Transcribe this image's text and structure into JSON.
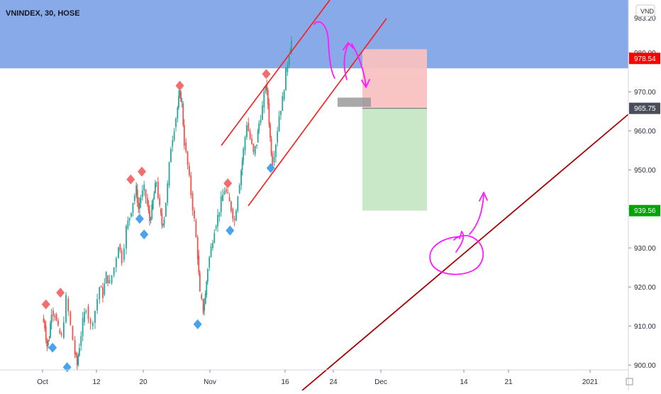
{
  "chart_data": {
    "type": "candlestick",
    "symbol_title": "VNINDEX, 30, HOSE",
    "currency_badge": "VND",
    "x_tick_labels": [
      "Oct",
      "12",
      "20",
      "Nov",
      "16",
      "24",
      "Dec",
      "14",
      "21",
      "2021"
    ],
    "y_tick_labels": [
      "900.00",
      "910.00",
      "920.00",
      "930.00",
      "940.00",
      "950.00",
      "960.00",
      "970.00",
      "980.00"
    ],
    "y_ticks": [
      900,
      910,
      920,
      930,
      940,
      950,
      960,
      970,
      980
    ],
    "ylim": [
      893.5,
      993.5
    ],
    "top_cut_label": "983.20",
    "price_badges": [
      {
        "label": "978.54",
        "value": 978.54,
        "color": "#ff0000",
        "text_color": "#ffffff"
      },
      {
        "label": "965.75",
        "value": 965.75,
        "color": "#4a4e5a",
        "text_color": "#ffffff"
      },
      {
        "label": "939.56",
        "value": 939.56,
        "color": "#00a400",
        "text_color": "#ffffff"
      }
    ],
    "resistance_zone": {
      "from": 976,
      "to": 993.5,
      "color": "#7fa3e6"
    },
    "position_tool": {
      "entry": 965.75,
      "stop": 978.54,
      "target": 939.56,
      "stop_color": "#f8c1c1",
      "target_color": "#c8e8c8"
    },
    "trend_channel_color": "#ff1a1a",
    "long_trendline_color": "#a80000",
    "annotation_color": "#ff19ff",
    "candle_up_color": "#26a69a",
    "candle_down_color": "#ef5350",
    "swing_high_marker_color": "#f26d6d",
    "swing_low_marker_color": "#4aa3ee",
    "price_path": [
      [
        0,
        912
      ],
      [
        0.04,
        910
      ],
      [
        0.08,
        905
      ],
      [
        0.12,
        907
      ],
      [
        0.16,
        914
      ],
      [
        0.22,
        913
      ],
      [
        0.28,
        909
      ],
      [
        0.34,
        907
      ],
      [
        0.42,
        917
      ],
      [
        0.5,
        910
      ],
      [
        0.58,
        903
      ],
      [
        0.62,
        900
      ],
      [
        0.66,
        905
      ],
      [
        0.72,
        911
      ],
      [
        0.78,
        915
      ],
      [
        0.86,
        910
      ],
      [
        0.94,
        914
      ],
      [
        1.02,
        920
      ],
      [
        1.08,
        918
      ],
      [
        1.14,
        923
      ],
      [
        1.2,
        921
      ],
      [
        1.28,
        925
      ],
      [
        1.36,
        931
      ],
      [
        1.42,
        927
      ],
      [
        1.5,
        935
      ],
      [
        1.56,
        938
      ],
      [
        1.62,
        942
      ],
      [
        1.68,
        945
      ],
      [
        1.72,
        940
      ],
      [
        1.76,
        943
      ],
      [
        1.82,
        945
      ],
      [
        1.88,
        941
      ],
      [
        1.92,
        937
      ],
      [
        1.96,
        940
      ],
      [
        2.0,
        944
      ],
      [
        2.04,
        947
      ],
      [
        2.1,
        940
      ],
      [
        2.14,
        936
      ],
      [
        2.18,
        938
      ],
      [
        2.24,
        946
      ],
      [
        2.3,
        956
      ],
      [
        2.36,
        961
      ],
      [
        2.42,
        966
      ],
      [
        2.46,
        970
      ],
      [
        2.5,
        967
      ],
      [
        2.54,
        957
      ],
      [
        2.6,
        951
      ],
      [
        2.66,
        944
      ],
      [
        2.72,
        937
      ],
      [
        2.78,
        928
      ],
      [
        2.82,
        918
      ],
      [
        2.88,
        914
      ],
      [
        2.92,
        918
      ],
      [
        2.96,
        925
      ],
      [
        3.02,
        930
      ],
      [
        3.08,
        935
      ],
      [
        3.14,
        938
      ],
      [
        3.2,
        942
      ],
      [
        3.26,
        945
      ],
      [
        3.32,
        943
      ],
      [
        3.38,
        940
      ],
      [
        3.44,
        937
      ],
      [
        3.5,
        944
      ],
      [
        3.56,
        950
      ],
      [
        3.6,
        955
      ],
      [
        3.66,
        962
      ],
      [
        3.72,
        958
      ],
      [
        3.78,
        954
      ],
      [
        3.84,
        957
      ],
      [
        3.88,
        962
      ],
      [
        3.94,
        966
      ],
      [
        4.0,
        972
      ],
      [
        4.04,
        967
      ],
      [
        4.08,
        958
      ],
      [
        4.12,
        952
      ],
      [
        4.18,
        957
      ],
      [
        4.24,
        964
      ],
      [
        4.3,
        968
      ],
      [
        4.36,
        975
      ],
      [
        4.42,
        980
      ],
      [
        4.46,
        983
      ]
    ],
    "swing_highs": [
      [
        0.06,
        915
      ],
      [
        0.32,
        918
      ],
      [
        1.58,
        947
      ],
      [
        1.78,
        949
      ],
      [
        2.46,
        971
      ],
      [
        3.32,
        946
      ],
      [
        4.01,
        974
      ]
    ],
    "swing_lows": [
      [
        0.18,
        905
      ],
      [
        0.44,
        900
      ],
      [
        1.74,
        938
      ],
      [
        1.82,
        934
      ],
      [
        2.78,
        911
      ],
      [
        3.36,
        935
      ],
      [
        4.09,
        951
      ]
    ]
  }
}
